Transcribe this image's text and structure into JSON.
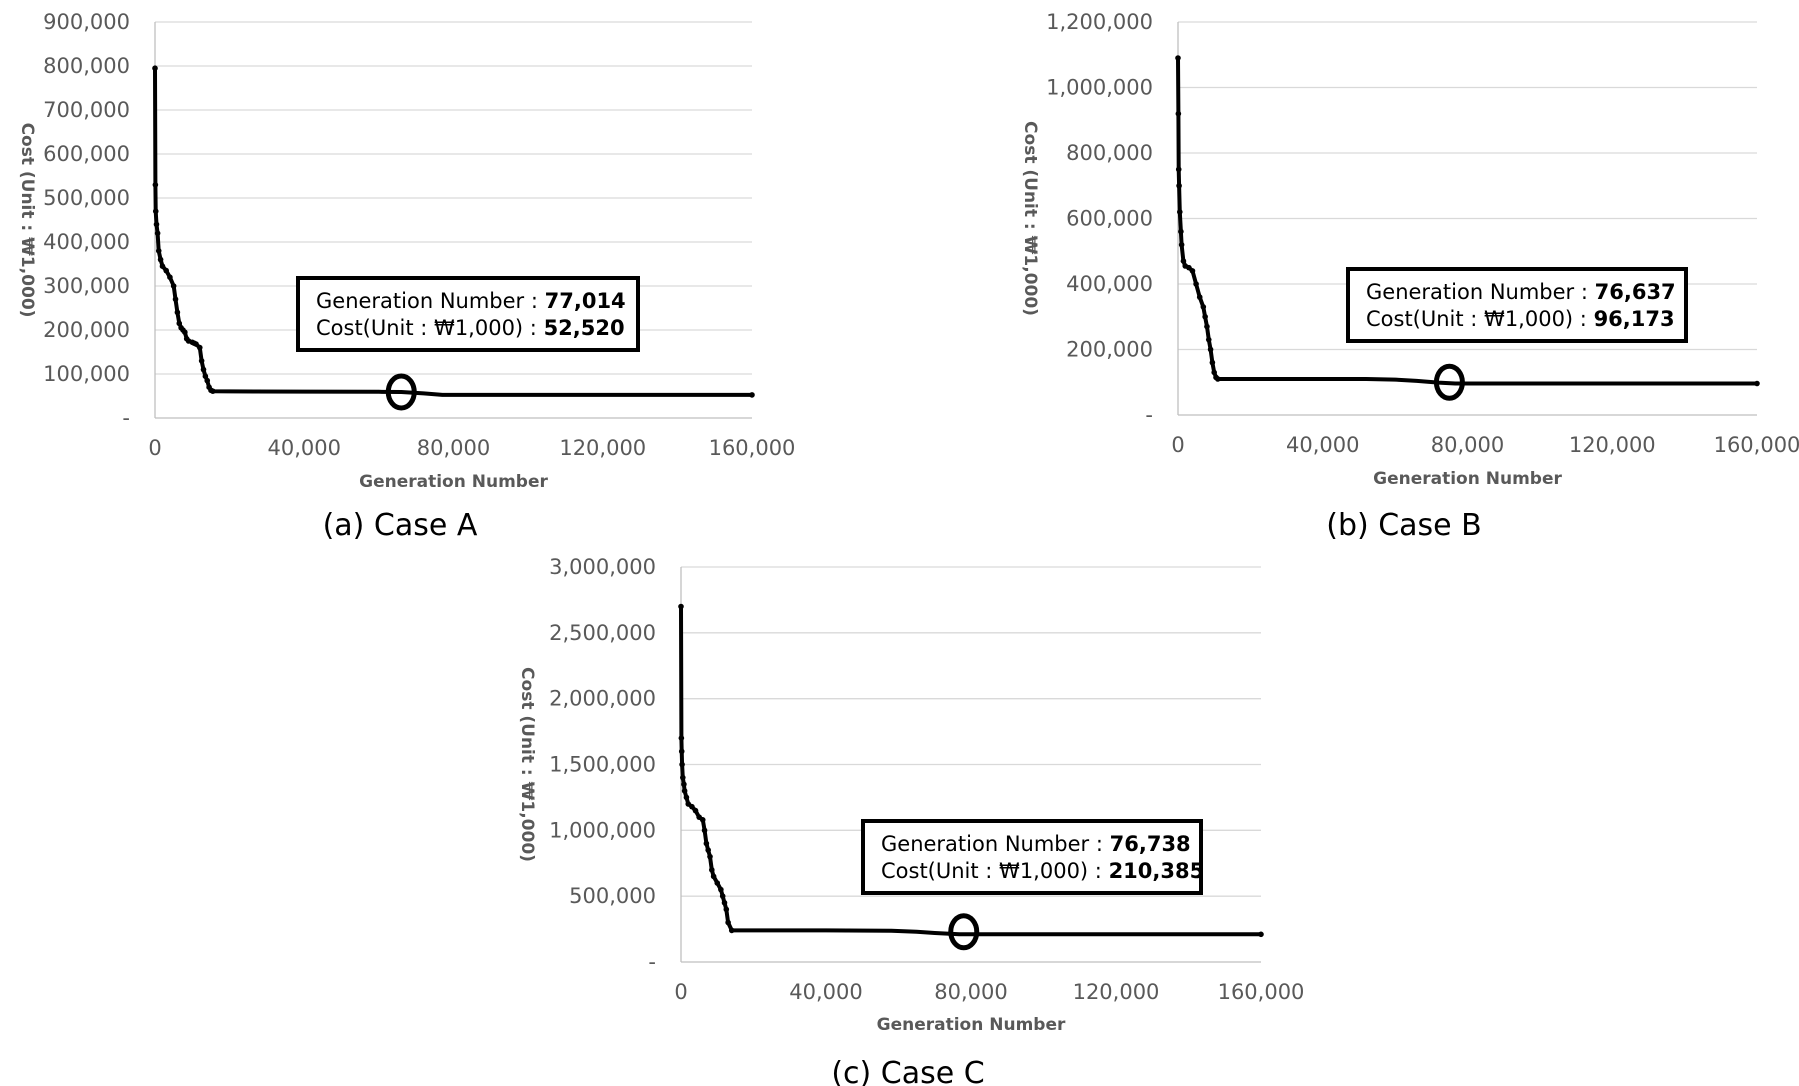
{
  "chart_data": [
    {
      "type": "line",
      "caption": "(a) Case A",
      "xlabel": "Generation Number",
      "ylabel": "Cost (Unit : ₩1,000)",
      "xlim": [
        0,
        160000
      ],
      "ylim": [
        0,
        900000
      ],
      "xticks": [
        0,
        40000,
        80000,
        120000,
        160000
      ],
      "xtick_labels": [
        "0",
        "40,000",
        "80,000",
        "120,000",
        "160,000"
      ],
      "yticks": [
        0,
        100000,
        200000,
        300000,
        400000,
        500000,
        600000,
        700000,
        800000,
        900000
      ],
      "ytick_labels": [
        "-",
        "100,000",
        "200,000",
        "300,000",
        "400,000",
        "500,000",
        "600,000",
        "700,000",
        "800,000",
        "900,000"
      ],
      "grid": true,
      "series": [
        {
          "x": [
            0,
            100,
            200,
            400,
            700,
            1000,
            1500,
            2000,
            3000,
            4000,
            5000,
            5500,
            6000,
            6500,
            7000,
            7500,
            8000,
            8500,
            9000,
            10000,
            10500,
            11000,
            12000,
            12500,
            13000,
            13500,
            14000,
            14500,
            15000,
            15500,
            20000,
            40000,
            60000,
            66000,
            72000,
            77014,
            100000,
            130000,
            160000
          ],
          "y": [
            795000,
            530000,
            470000,
            440000,
            420000,
            380000,
            360000,
            345000,
            335000,
            320000,
            300000,
            270000,
            240000,
            215000,
            205000,
            200000,
            195000,
            180000,
            175000,
            172000,
            170000,
            168000,
            160000,
            130000,
            110000,
            95000,
            85000,
            70000,
            63000,
            61000,
            60500,
            60000,
            59500,
            59000,
            56000,
            52520,
            52520,
            52520,
            52520
          ]
        }
      ],
      "highlight": {
        "x": 66000,
        "y": 59000
      },
      "annotation": {
        "line1_label": "Generation Number : ",
        "line1_value": "77,014",
        "line2_label": "Cost(Unit : ₩1,000) : ",
        "line2_value": "52,520"
      }
    },
    {
      "type": "line",
      "caption": "(b) Case B",
      "xlabel": "Generation Number",
      "ylabel": "Cost (Unit : ₩1,000)",
      "xlim": [
        0,
        160000
      ],
      "ylim": [
        0,
        1200000
      ],
      "xticks": [
        0,
        40000,
        80000,
        120000,
        160000
      ],
      "xtick_labels": [
        "0",
        "40,000",
        "80,000",
        "120,000",
        "160,000"
      ],
      "yticks": [
        0,
        200000,
        400000,
        600000,
        800000,
        1000000,
        1200000
      ],
      "ytick_labels": [
        "-",
        "200,000",
        "400,000",
        "600,000",
        "800,000",
        "1,000,000",
        "1,200,000"
      ],
      "grid": true,
      "series": [
        {
          "x": [
            0,
            100,
            200,
            300,
            500,
            800,
            1000,
            1500,
            2000,
            3000,
            4000,
            5000,
            6000,
            7000,
            7500,
            8000,
            8500,
            9000,
            9500,
            10000,
            10500,
            11000,
            20000,
            40000,
            52000,
            60000,
            66000,
            72000,
            76637,
            100000,
            130000,
            160000
          ],
          "y": [
            1090000,
            920000,
            750000,
            700000,
            620000,
            560000,
            520000,
            470000,
            455000,
            450000,
            440000,
            400000,
            360000,
            330000,
            300000,
            270000,
            230000,
            200000,
            160000,
            130000,
            115000,
            110000,
            110000,
            110000,
            110000,
            108000,
            104000,
            99000,
            96173,
            96173,
            96173,
            96173
          ]
        }
      ],
      "highlight": {
        "x": 75000,
        "y": 100000
      },
      "annotation": {
        "line1_label": "Generation Number : ",
        "line1_value": "76,637",
        "line2_label": "Cost(Unit : ₩1,000) : ",
        "line2_value": "96,173"
      }
    },
    {
      "type": "line",
      "caption": "(c) Case C",
      "xlabel": "Generation Number",
      "ylabel": "Cost (Unit : ₩1,000)",
      "xlim": [
        0,
        160000
      ],
      "ylim": [
        0,
        3000000
      ],
      "xticks": [
        0,
        40000,
        80000,
        120000,
        160000
      ],
      "xtick_labels": [
        "0",
        "40,000",
        "80,000",
        "120,000",
        "160,000"
      ],
      "yticks": [
        0,
        500000,
        1000000,
        1500000,
        2000000,
        2500000,
        3000000
      ],
      "ytick_labels": [
        "-",
        "500,000",
        "1,000,000",
        "1,500,000",
        "2,000,000",
        "2,500,000",
        "3,000,000"
      ],
      "grid": true,
      "series": [
        {
          "x": [
            0,
            100,
            200,
            300,
            500,
            800,
            1000,
            1500,
            2000,
            3000,
            4000,
            5000,
            6000,
            6500,
            7000,
            7500,
            8000,
            8500,
            9000,
            10000,
            11000,
            11500,
            12000,
            12500,
            13000,
            14000,
            20000,
            40000,
            58000,
            65000,
            70000,
            76738,
            100000,
            130000,
            160000
          ],
          "y": [
            2700000,
            1700000,
            1600000,
            1500000,
            1400000,
            1350000,
            1300000,
            1250000,
            1200000,
            1180000,
            1150000,
            1100000,
            1080000,
            1000000,
            900000,
            850000,
            800000,
            700000,
            650000,
            600000,
            550000,
            500000,
            450000,
            400000,
            300000,
            240000,
            240000,
            240000,
            238000,
            230000,
            220000,
            210385,
            210385,
            210385,
            210385
          ]
        }
      ],
      "highlight": {
        "x": 78000,
        "y": 230000
      },
      "annotation": {
        "line1_label": "Generation Number : ",
        "line1_value": "76,738",
        "line2_label": "Cost(Unit : ₩1,000) : ",
        "line2_value": "210,385"
      }
    }
  ]
}
